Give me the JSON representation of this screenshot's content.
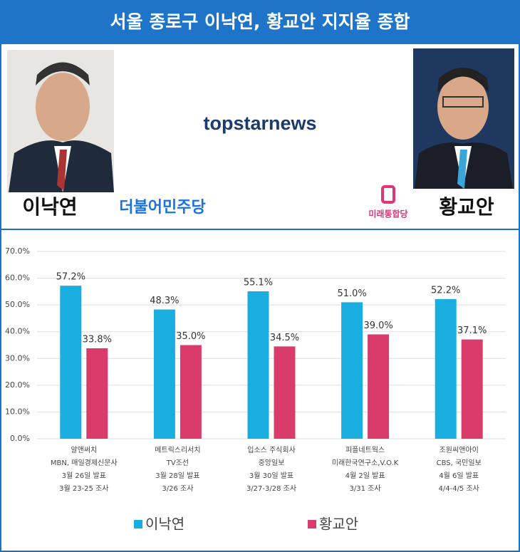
{
  "header": {
    "left_name": "이낙연",
    "right_name": "황교안",
    "brand": "topstarnews",
    "left_party": "더불어민주당",
    "right_party": "미래통합당"
  },
  "chart_data": {
    "type": "bar",
    "title": "서울 종로구 이낙연, 황교안 지지율 종합",
    "categories": [
      [
        "알앤써치",
        "MBN, 매일경제신문사",
        "3월 26일 발표",
        "3월 23-25 조사"
      ],
      [
        "메트릭스리서치",
        "TV조선",
        "3월 28일 발표",
        "3/26 조사"
      ],
      [
        "입소스 주식회사",
        "중앙일보",
        "3월 30일 발표",
        "3/27-3/28 조사"
      ],
      [
        "피플네트웍스",
        "미래한국연구소,V.O.K",
        "4월 2일 발표",
        "3/31 조사"
      ],
      [
        "조원씨앤아이",
        "CBS, 국민일보",
        "4월 6일 발표",
        "4/4-4/5 조사"
      ]
    ],
    "series": [
      {
        "name": "이낙연",
        "color": "#1aaee0",
        "values": [
          57.2,
          48.3,
          55.1,
          51.0,
          52.2
        ],
        "value_labels": [
          "57.2%",
          "48.3%",
          "55.1%",
          "51.0%",
          "52.2%"
        ]
      },
      {
        "name": "황교안",
        "color": "#d93c6b",
        "values": [
          33.8,
          35.0,
          34.5,
          39.0,
          37.1
        ],
        "value_labels": [
          "33.8%",
          "35.0%",
          "34.5%",
          "39.0%",
          "37.1%"
        ]
      }
    ],
    "ylim": [
      0,
      70
    ],
    "yticks": [
      {
        "value": 0,
        "label": "0.0%"
      },
      {
        "value": 10,
        "label": "10.0%"
      },
      {
        "value": 20,
        "label": "20.0%"
      },
      {
        "value": 30,
        "label": "30.0%"
      },
      {
        "value": 40,
        "label": "40.0%"
      },
      {
        "value": 50,
        "label": "50.0%"
      },
      {
        "value": 60,
        "label": "60.0%"
      },
      {
        "value": 70,
        "label": "70.0%"
      }
    ],
    "grid": true
  }
}
